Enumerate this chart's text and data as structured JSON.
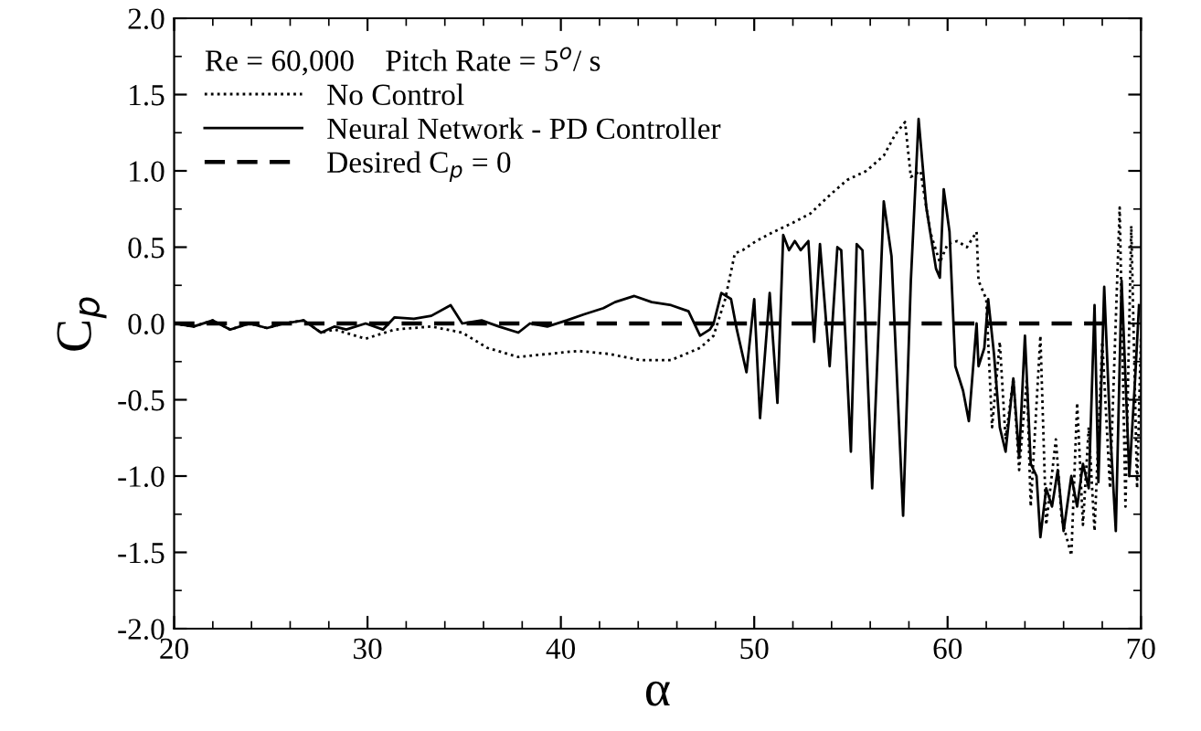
{
  "chart_data": {
    "type": "line",
    "xlabel": "α",
    "ylabel": "C$_{p}$",
    "legend_title": "Re = 60,000    Pitch Rate = 5$^{o}$/ s",
    "legend": "top left",
    "grid": false,
    "xlim": [
      20,
      70
    ],
    "xticks": [
      20,
      30,
      40,
      50,
      60,
      70
    ],
    "ylim": [
      -2.0,
      2.0
    ],
    "yticks": [
      {
        "value": -2.0,
        "label": "-2.0"
      },
      {
        "value": -1.5,
        "label": "-1.5"
      },
      {
        "value": -1.0,
        "label": "-1.0"
      },
      {
        "value": -0.5,
        "label": "-0.5"
      },
      {
        "value": 0.0,
        "label": "0.0"
      },
      {
        "value": 0.5,
        "label": "0.5"
      },
      {
        "value": 1.0,
        "label": "1.0"
      },
      {
        "value": 1.5,
        "label": "1.5"
      },
      {
        "value": 2.0,
        "label": "2.0"
      }
    ],
    "series": [
      {
        "name": "No Control",
        "color": "#000000",
        "line_style": "dotted",
        "x": [
          20,
          21.0,
          22.0,
          22.9,
          23.9,
          24.8,
          25.7,
          26.7,
          27.6,
          28.3,
          29.9,
          31.4,
          33.3,
          34.9,
          36.2,
          37.8,
          39.3,
          40.9,
          42.5,
          44.1,
          45.7,
          47.2,
          47.9,
          48.5,
          49.0,
          49.4,
          50.1,
          51.0,
          52.0,
          52.9,
          53.9,
          54.8,
          55.8,
          56.7,
          57.3,
          57.8,
          58.1,
          58.6,
          59.1,
          59.6,
          60.0,
          60.5,
          61.0,
          61.5,
          61.6,
          62.0,
          62.3,
          62.7,
          63.0,
          63.4,
          63.7,
          64.1,
          64.3,
          64.8,
          65.1,
          65.6,
          65.9,
          66.4,
          66.7,
          67.0,
          67.3,
          67.6,
          68.0,
          68.4,
          68.9,
          69.2,
          69.5,
          69.8,
          70.0
        ],
        "values": [
          0,
          -0.02,
          0.02,
          -0.04,
          0,
          -0.03,
          0,
          0.02,
          -0.06,
          -0.04,
          -0.1,
          -0.04,
          -0.02,
          -0.06,
          -0.16,
          -0.22,
          -0.2,
          -0.18,
          -0.2,
          -0.24,
          -0.24,
          -0.16,
          -0.08,
          0.16,
          0.46,
          0.48,
          0.54,
          0.6,
          0.66,
          0.72,
          0.84,
          0.94,
          1.0,
          1.1,
          1.24,
          1.32,
          0.96,
          1.0,
          0.6,
          0.4,
          0.52,
          0.54,
          0.5,
          0.6,
          0.28,
          0.16,
          -0.68,
          -0.12,
          -0.76,
          -0.36,
          -0.96,
          -0.36,
          -1.2,
          -0.08,
          -1.32,
          -0.76,
          -1.28,
          -1.52,
          -0.52,
          -1.32,
          -0.68,
          -1.36,
          -0.12,
          -1.08,
          0.76,
          -1.2,
          0.64,
          -1.08,
          -0.08
        ]
      },
      {
        "name": "Neural Network - PD Controller",
        "color": "#000000",
        "line_style": "solid",
        "x": [
          20,
          21.0,
          22.0,
          22.9,
          23.9,
          24.8,
          25.7,
          26.7,
          27.6,
          28.3,
          28.9,
          29.9,
          30.8,
          31.4,
          32.4,
          33.3,
          34.3,
          34.9,
          35.9,
          36.8,
          37.8,
          38.4,
          39.3,
          40.3,
          41.2,
          42.2,
          42.8,
          43.8,
          44.7,
          45.7,
          46.6,
          47.2,
          47.7,
          47.9,
          48.3,
          48.8,
          49.1,
          49.6,
          50.0,
          50.3,
          50.8,
          51.2,
          51.5,
          51.8,
          52.1,
          52.4,
          52.8,
          53.1,
          53.4,
          53.9,
          54.3,
          54.5,
          55.0,
          55.3,
          55.6,
          56.1,
          56.7,
          57.1,
          57.7,
          58.1,
          58.5,
          58.9,
          59.4,
          59.6,
          59.8,
          60.1,
          60.4,
          60.8,
          61.1,
          61.5,
          61.6,
          61.9,
          62.1,
          62.4,
          62.7,
          63.0,
          63.4,
          63.7,
          64.0,
          64.3,
          64.6,
          64.8,
          65.1,
          65.4,
          65.7,
          66.0,
          66.4,
          66.7,
          67.0,
          67.3,
          67.6,
          67.8,
          68.1,
          68.4,
          68.7,
          69.0,
          69.4,
          69.7,
          69.9
        ],
        "values": [
          0,
          -0.02,
          0.02,
          -0.04,
          0,
          -0.03,
          0,
          0.02,
          -0.06,
          -0.02,
          -0.04,
          0,
          -0.04,
          0.04,
          0.03,
          0.05,
          0.12,
          0,
          0.02,
          -0.02,
          -0.06,
          0,
          -0.02,
          0.02,
          0.06,
          0.1,
          0.14,
          0.18,
          0.14,
          0.12,
          0.08,
          -0.08,
          -0.04,
          0,
          0.2,
          0.16,
          -0.04,
          -0.32,
          0.16,
          -0.62,
          0.2,
          -0.52,
          0.58,
          0.48,
          0.54,
          0.48,
          0.54,
          -0.12,
          0.52,
          -0.28,
          0.5,
          0.48,
          -0.84,
          0.52,
          0.48,
          -1.08,
          0.8,
          0.44,
          -1.26,
          0.28,
          1.34,
          0.76,
          0.36,
          0.3,
          0.88,
          0.6,
          -0.28,
          -0.44,
          -0.64,
          0,
          -0.28,
          -0.16,
          0.16,
          -0.2,
          -0.68,
          -0.84,
          -0.36,
          -0.88,
          -0.08,
          -0.92,
          -1.0,
          -1.4,
          -1.08,
          -1.2,
          -0.96,
          -1.36,
          -1.0,
          -1.2,
          -0.92,
          -1.08,
          0.12,
          -1.04,
          0.24,
          -0.68,
          -1.36,
          0.28,
          -1.0,
          -0.36,
          0.12
        ]
      },
      {
        "name": "Desired C$_{p}$ = 0",
        "color": "#000000",
        "line_style": "dashed",
        "x": [
          20,
          68.5
        ],
        "values": [
          0,
          0
        ]
      }
    ]
  }
}
